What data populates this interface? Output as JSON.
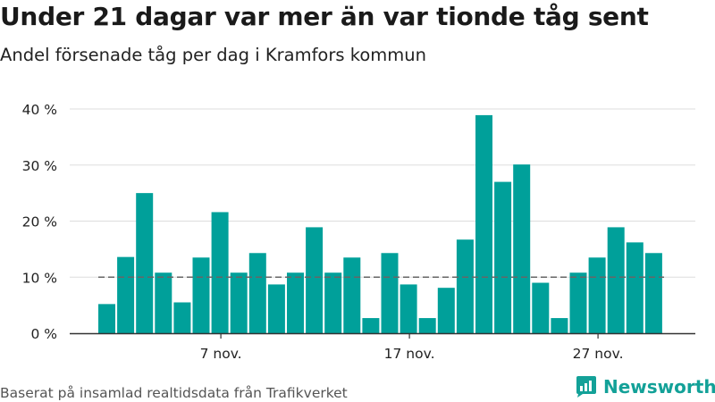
{
  "title": "Under 21 dagar var mer än var tionde tåg sent",
  "subtitle": "Andel försenade tåg per dag i Kramfors kommun",
  "source": "Baserat på insamlad realtidsdata från Trafikverket",
  "brand": {
    "name": "Newsworthy",
    "icon": "newsworthy-logo-icon"
  },
  "colors": {
    "bar": "#00a09a",
    "grid": "#dddddd",
    "axis": "#333333",
    "reference": "#666666"
  },
  "chart_data": {
    "type": "bar",
    "categories": [
      "1 nov.",
      "2 nov.",
      "3 nov.",
      "4 nov.",
      "5 nov.",
      "6 nov.",
      "7 nov.",
      "8 nov.",
      "9 nov.",
      "10 nov.",
      "11 nov.",
      "12 nov.",
      "13 nov.",
      "14 nov.",
      "15 nov.",
      "16 nov.",
      "17 nov.",
      "18 nov.",
      "19 nov.",
      "20 nov.",
      "21 nov.",
      "22 nov.",
      "23 nov.",
      "24 nov.",
      "25 nov.",
      "26 nov.",
      "27 nov.",
      "28 nov.",
      "29 nov.",
      "30 nov."
    ],
    "values": [
      5.2,
      13.6,
      25.0,
      10.8,
      5.5,
      13.5,
      21.6,
      10.8,
      14.3,
      8.7,
      10.8,
      18.9,
      10.8,
      13.5,
      2.7,
      14.3,
      8.7,
      2.7,
      8.1,
      16.7,
      38.9,
      27.0,
      30.1,
      9.0,
      2.7,
      10.8,
      13.5,
      18.9,
      16.2,
      14.3
    ],
    "ylim": [
      0,
      40
    ],
    "yticks": [
      0,
      10,
      20,
      30,
      40
    ],
    "ytick_labels": [
      "0 %",
      "10 %",
      "20 %",
      "30 %",
      "40 %"
    ],
    "xticks": [
      {
        "category": "7 nov.",
        "label": "7 nov."
      },
      {
        "category": "17 nov.",
        "label": "17 nov."
      },
      {
        "category": "27 nov.",
        "label": "27 nov."
      }
    ],
    "reference_line": 10,
    "grid": true,
    "xlabel": "",
    "ylabel": ""
  }
}
